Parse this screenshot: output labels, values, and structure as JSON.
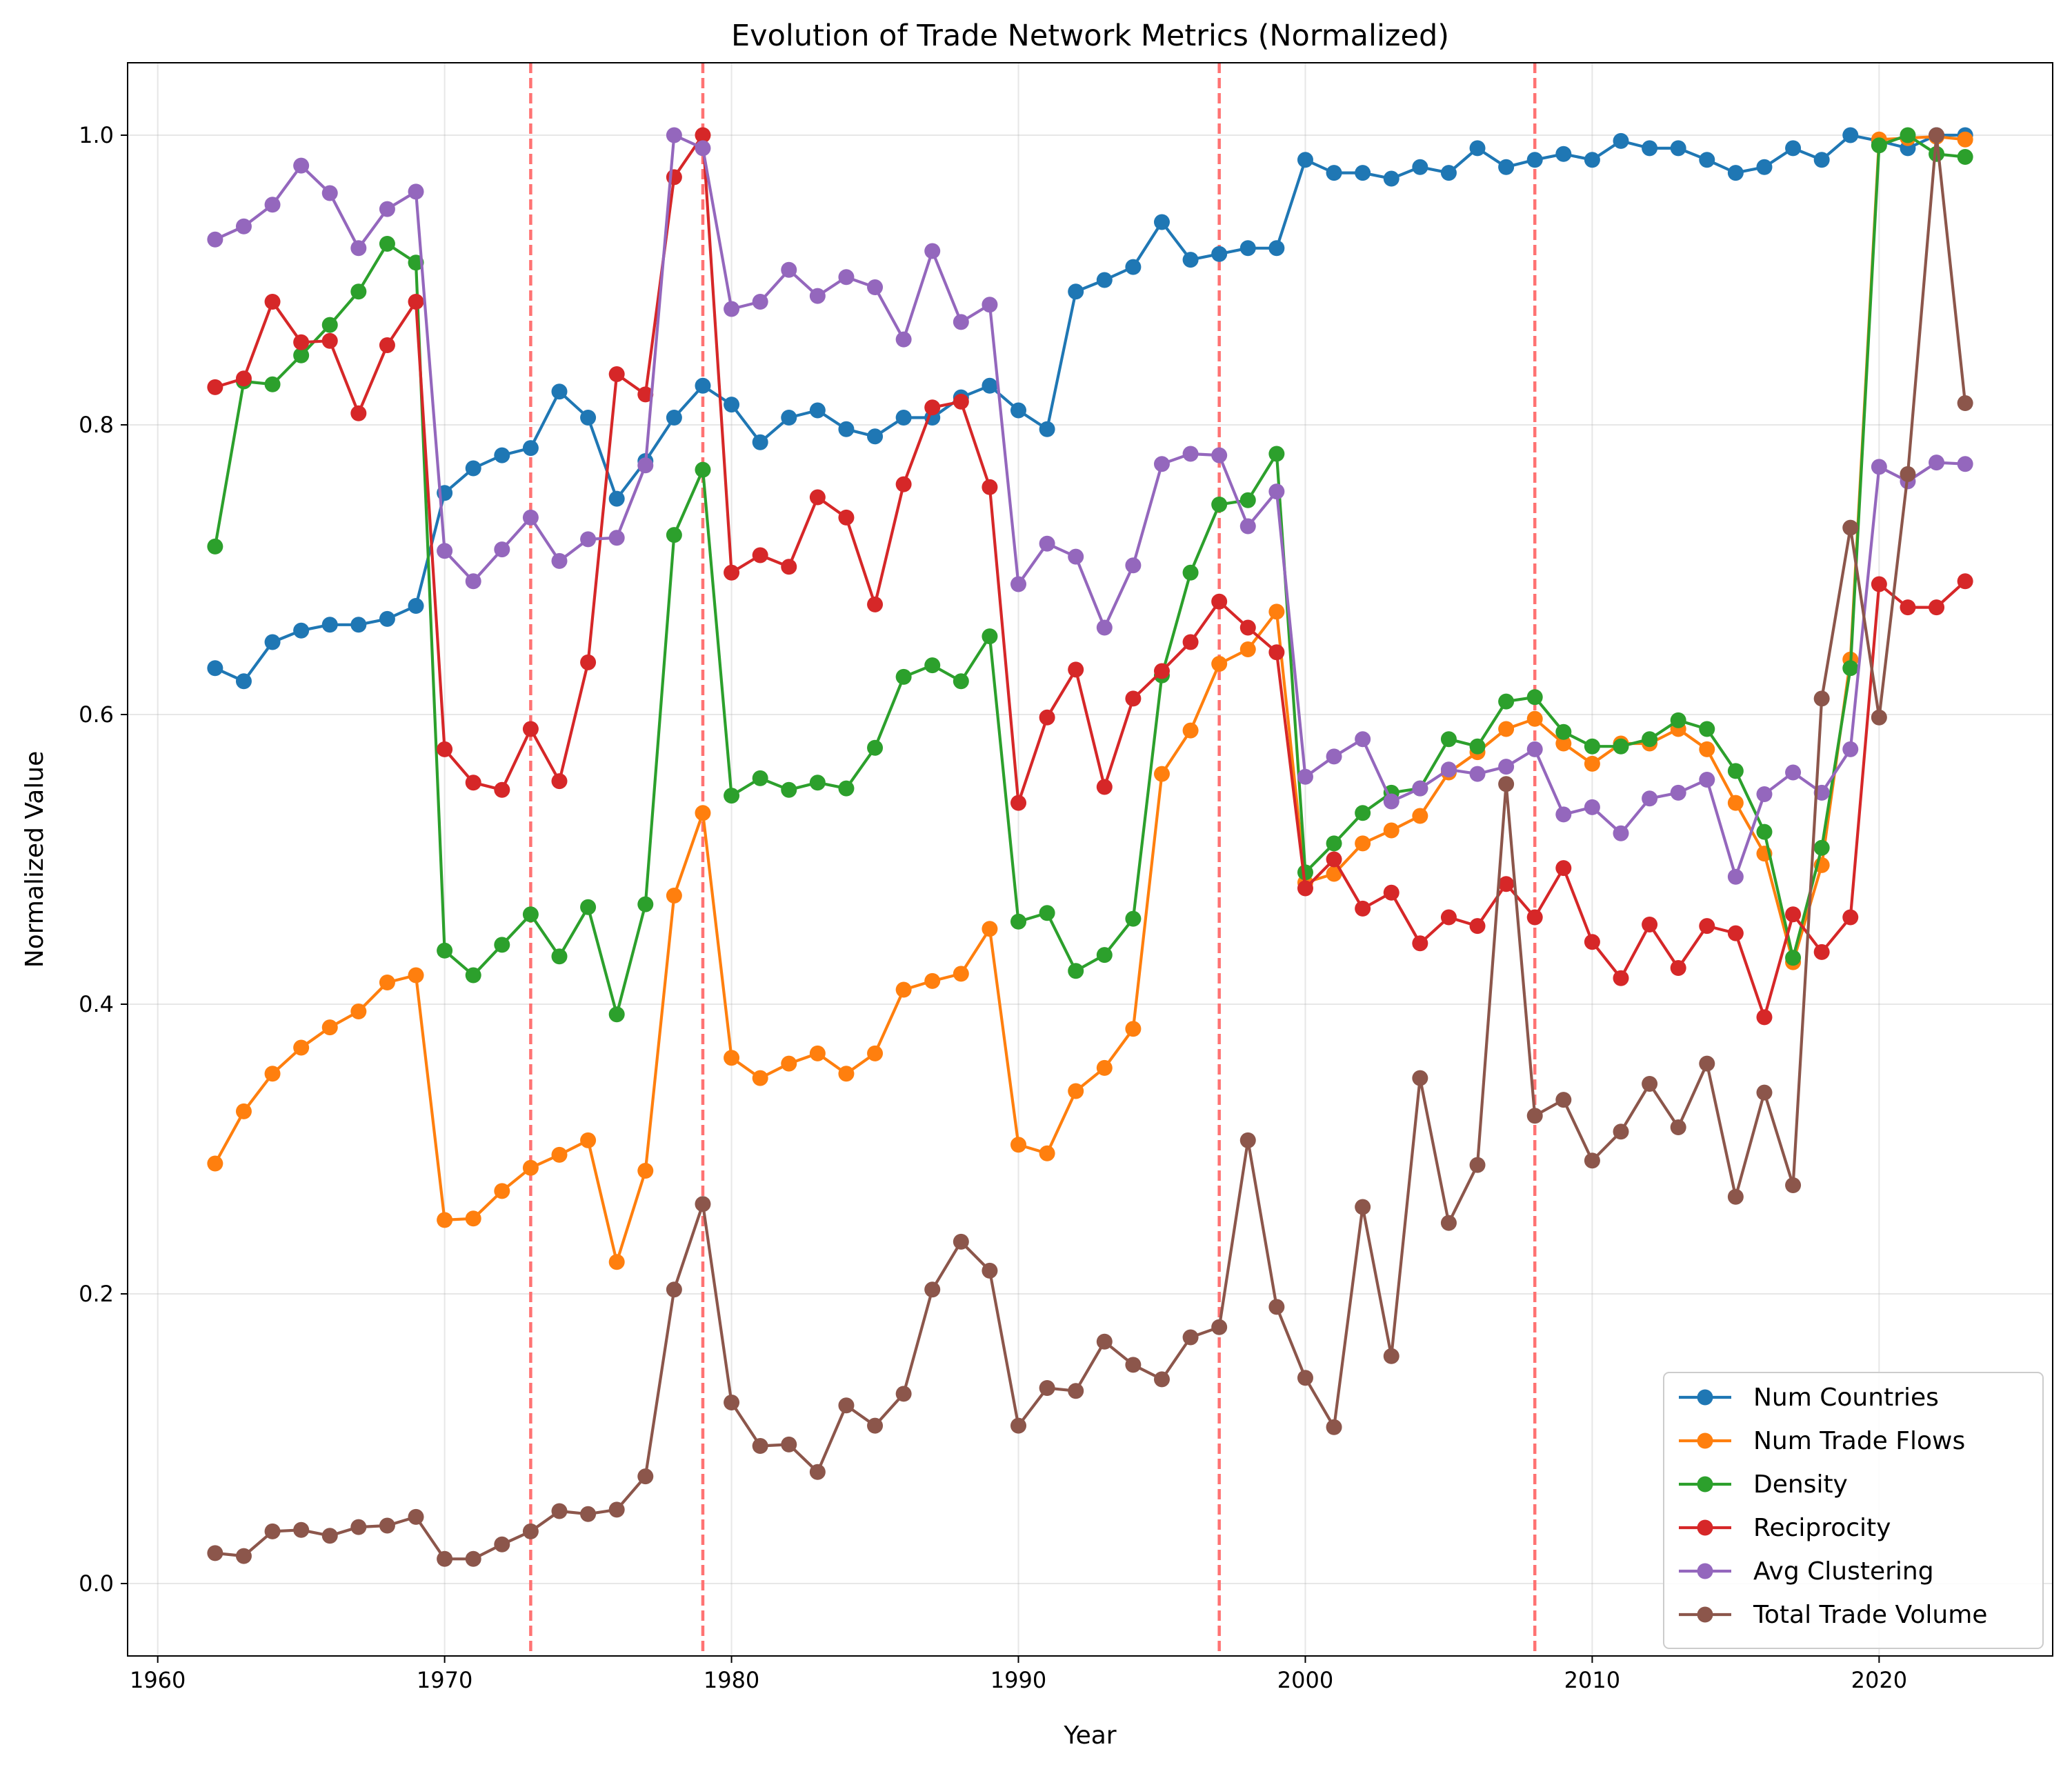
{
  "chart_data": {
    "type": "line",
    "title": "Evolution of Trade Network Metrics (Normalized)",
    "xlabel": "Year",
    "ylabel": "Normalized Value",
    "xlim": [
      1958.95,
      2026.05
    ],
    "ylim": [
      -0.05,
      1.05
    ],
    "xticks": [
      1960,
      1970,
      1980,
      1990,
      2000,
      2010,
      2020
    ],
    "yticks": [
      0.0,
      0.2,
      0.4,
      0.6,
      0.8,
      1.0
    ],
    "xtick_labels": [
      "1960",
      "1970",
      "1980",
      "1990",
      "2000",
      "2010",
      "2020"
    ],
    "ytick_labels": [
      "0.0",
      "0.2",
      "0.4",
      "0.6",
      "0.8",
      "1.0"
    ],
    "grid": true,
    "legend_position": "lower-right",
    "reference_lines": [
      {
        "x": 1973,
        "color": "#ff6b6b",
        "style": "dashed"
      },
      {
        "x": 1979,
        "color": "#ff6b6b",
        "style": "dashed"
      },
      {
        "x": 1997,
        "color": "#ff6b6b",
        "style": "dashed"
      },
      {
        "x": 2008,
        "color": "#ff6b6b",
        "style": "dashed"
      }
    ],
    "x": [
      1962,
      1963,
      1964,
      1965,
      1966,
      1967,
      1968,
      1969,
      1970,
      1971,
      1972,
      1973,
      1974,
      1975,
      1976,
      1977,
      1978,
      1979,
      1980,
      1981,
      1982,
      1983,
      1984,
      1985,
      1986,
      1987,
      1988,
      1989,
      1990,
      1991,
      1992,
      1993,
      1994,
      1995,
      1996,
      1997,
      1998,
      1999,
      2000,
      2001,
      2002,
      2003,
      2004,
      2005,
      2006,
      2007,
      2008,
      2009,
      2010,
      2011,
      2012,
      2013,
      2014,
      2015,
      2016,
      2017,
      2018,
      2019,
      2020,
      2021,
      2022,
      2023
    ],
    "series": [
      {
        "name": "Num Countries",
        "color": "#1f77b4",
        "values": [
          0.632,
          0.623,
          0.65,
          0.658,
          0.662,
          0.662,
          0.666,
          0.675,
          0.753,
          0.77,
          0.779,
          0.784,
          0.823,
          0.805,
          0.749,
          0.775,
          0.805,
          0.827,
          0.814,
          0.788,
          0.805,
          0.81,
          0.797,
          0.792,
          0.805,
          0.805,
          0.819,
          0.827,
          0.81,
          0.797,
          0.892,
          0.9,
          0.909,
          0.94,
          0.914,
          0.918,
          0.922,
          0.922,
          0.983,
          0.974,
          0.974,
          0.97,
          0.978,
          0.974,
          0.991,
          0.978,
          0.983,
          0.987,
          0.983,
          0.996,
          0.991,
          0.991,
          0.983,
          0.974,
          0.978,
          0.991,
          0.983,
          1.0,
          0.996,
          0.991,
          1.0,
          1.0
        ]
      },
      {
        "name": "Num Trade Flows",
        "color": "#ff7f0e",
        "values": [
          0.29,
          0.326,
          0.352,
          0.37,
          0.384,
          0.395,
          0.415,
          0.42,
          0.251,
          0.252,
          0.271,
          0.287,
          0.296,
          0.306,
          0.222,
          0.285,
          0.475,
          0.532,
          0.363,
          0.349,
          0.359,
          0.366,
          0.352,
          0.366,
          0.41,
          0.416,
          0.421,
          0.452,
          0.303,
          0.297,
          0.34,
          0.356,
          0.383,
          0.559,
          0.589,
          0.635,
          0.645,
          0.671,
          0.484,
          0.49,
          0.511,
          0.52,
          0.53,
          0.56,
          0.574,
          0.59,
          0.597,
          0.58,
          0.566,
          0.58,
          0.58,
          0.59,
          0.576,
          0.539,
          0.504,
          0.429,
          0.496,
          0.638,
          0.997,
          0.998,
          0.999,
          0.997
        ]
      },
      {
        "name": "Density",
        "color": "#2ca02c",
        "values": [
          0.716,
          0.83,
          0.828,
          0.848,
          0.869,
          0.892,
          0.925,
          0.912,
          0.437,
          0.42,
          0.441,
          0.462,
          0.433,
          0.467,
          0.393,
          0.469,
          0.724,
          0.769,
          0.544,
          0.556,
          0.548,
          0.553,
          0.549,
          0.577,
          0.626,
          0.634,
          0.623,
          0.654,
          0.457,
          0.463,
          0.423,
          0.434,
          0.459,
          0.627,
          0.698,
          0.745,
          0.748,
          0.78,
          0.491,
          0.511,
          0.532,
          0.546,
          0.549,
          0.583,
          0.578,
          0.609,
          0.612,
          0.588,
          0.578,
          0.578,
          0.583,
          0.596,
          0.59,
          0.561,
          0.519,
          0.432,
          0.508,
          0.632,
          0.993,
          1.0,
          0.987,
          0.985
        ]
      },
      {
        "name": "Reciprocity",
        "color": "#d62728",
        "values": [
          0.826,
          0.832,
          0.885,
          0.857,
          0.858,
          0.808,
          0.855,
          0.885,
          0.576,
          0.553,
          0.548,
          0.59,
          0.554,
          0.636,
          0.835,
          0.821,
          0.971,
          1.0,
          0.698,
          0.71,
          0.702,
          0.75,
          0.736,
          0.676,
          0.759,
          0.812,
          0.816,
          0.757,
          0.539,
          0.598,
          0.631,
          0.55,
          0.611,
          0.63,
          0.65,
          0.678,
          0.66,
          0.643,
          0.48,
          0.5,
          0.466,
          0.477,
          0.442,
          0.46,
          0.454,
          0.483,
          0.46,
          0.494,
          0.443,
          0.418,
          0.455,
          0.425,
          0.454,
          0.449,
          0.391,
          0.462,
          0.436,
          0.46,
          0.69,
          0.674,
          0.674,
          0.692
        ]
      },
      {
        "name": "Avg Clustering",
        "color": "#9467bd",
        "values": [
          0.928,
          0.937,
          0.952,
          0.979,
          0.96,
          0.922,
          0.949,
          0.961,
          0.713,
          0.692,
          0.714,
          0.736,
          0.706,
          0.721,
          0.722,
          0.772,
          1.0,
          0.991,
          0.88,
          0.885,
          0.907,
          0.889,
          0.902,
          0.895,
          0.859,
          0.92,
          0.871,
          0.883,
          0.69,
          0.718,
          0.709,
          0.66,
          0.703,
          0.773,
          0.78,
          0.779,
          0.73,
          0.754,
          0.557,
          0.571,
          0.583,
          0.54,
          0.549,
          0.562,
          0.559,
          0.564,
          0.576,
          0.531,
          0.536,
          0.518,
          0.542,
          0.546,
          0.555,
          0.488,
          0.545,
          0.56,
          0.546,
          0.576,
          0.771,
          0.761,
          0.774,
          0.773
        ]
      },
      {
        "name": "Total Trade Volume",
        "color": "#8c564b",
        "values": [
          0.021,
          0.019,
          0.036,
          0.037,
          0.033,
          0.039,
          0.04,
          0.046,
          0.017,
          0.017,
          0.027,
          0.036,
          0.05,
          0.048,
          0.051,
          0.074,
          0.203,
          0.262,
          0.125,
          0.095,
          0.096,
          0.077,
          0.123,
          0.109,
          0.131,
          0.203,
          0.236,
          0.216,
          0.109,
          0.135,
          0.133,
          0.167,
          0.151,
          0.141,
          0.17,
          0.177,
          0.306,
          0.191,
          0.142,
          0.108,
          0.26,
          0.157,
          0.349,
          0.249,
          0.289,
          0.552,
          0.323,
          0.334,
          0.292,
          0.312,
          0.345,
          0.315,
          0.359,
          0.267,
          0.339,
          0.275,
          0.611,
          0.729,
          0.598,
          0.766,
          1.0,
          0.815
        ]
      }
    ]
  }
}
